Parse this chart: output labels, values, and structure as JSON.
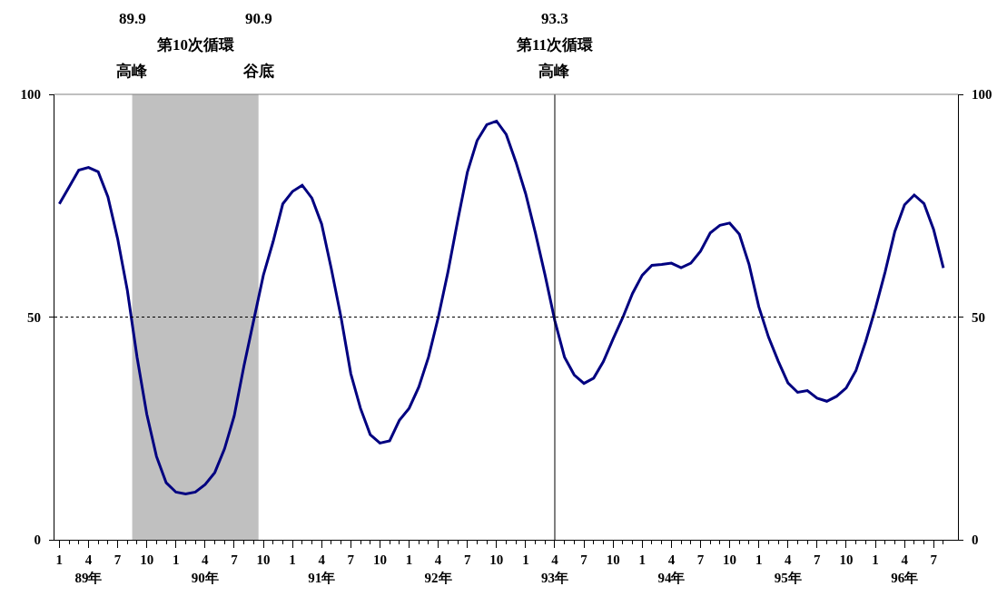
{
  "chart_data": {
    "type": "line",
    "categories": [
      "1",
      null,
      null,
      "4\n89年",
      null,
      null,
      "7",
      null,
      null,
      "10",
      null,
      null,
      "1",
      null,
      null,
      "4\n90年",
      null,
      null,
      "7",
      null,
      null,
      "10",
      null,
      null,
      "1",
      null,
      null,
      "4\n91年",
      null,
      null,
      "7",
      null,
      null,
      "10",
      null,
      null,
      "1",
      null,
      null,
      "4\n92年",
      null,
      null,
      "7",
      null,
      null,
      "10",
      null,
      null,
      "1",
      null,
      null,
      "4\n93年",
      null,
      null,
      "7",
      null,
      null,
      "10",
      null,
      null,
      "1",
      null,
      null,
      "4\n94年",
      null,
      null,
      "7",
      null,
      null,
      "10",
      null,
      null,
      "1",
      null,
      null,
      "4\n95年",
      null,
      null,
      "7",
      null,
      null,
      "10",
      null,
      null,
      "1",
      null,
      null,
      "4\n96年",
      null,
      null,
      "7",
      null
    ],
    "series": [
      {
        "color": "#000080",
        "values": [
          75.4,
          79.2,
          83,
          83.6,
          82.6,
          77,
          67.6,
          56,
          41,
          28.2,
          18.7,
          12.8,
          10.7,
          10.3,
          10.7,
          12.4,
          15.1,
          20.4,
          27.8,
          39,
          49.2,
          59.4,
          66.9,
          75.4,
          78.2,
          79.6,
          76.7,
          70.9,
          60.8,
          49.9,
          37.3,
          29.5,
          23.6,
          21.7,
          22.2,
          26.8,
          29.5,
          34.3,
          41,
          49.9,
          60.1,
          71.6,
          82.5,
          89.6,
          93.2,
          94,
          91,
          84.8,
          77.7,
          68.9,
          59.4,
          49.2,
          41,
          37,
          35.1,
          36.3,
          40,
          45.1,
          49.9,
          55.3,
          59.4,
          61.6,
          61.8,
          62.1,
          61.1,
          62.1,
          64.8,
          68.9,
          70.6,
          71.1,
          68.6,
          61.8,
          52.3,
          45.5,
          40.1,
          35.2,
          33.1,
          33.5,
          31.8,
          31.1,
          32.2,
          34.1,
          38,
          44.5,
          51.9,
          60.1,
          69.2,
          75.2,
          77.4,
          75.5,
          69.6,
          61
        ]
      }
    ],
    "ylim": [
      0,
      100
    ],
    "yticks": [
      0,
      50,
      100
    ],
    "y2lim": [
      0,
      100
    ],
    "y2ticks": [
      0,
      50,
      100
    ],
    "ref_lines": [
      {
        "axis": "y",
        "value": 50,
        "color": "#000000",
        "line_style": "dotted"
      },
      {
        "axis": "x",
        "value": "4\n93年",
        "color": "#000000",
        "line_style": "solid"
      }
    ],
    "annotations": [
      "89.9",
      "90.9",
      "第10次循環",
      "高峰",
      "谷底",
      "93.3",
      "第11次循環",
      "高峰"
    ],
    "grid": false,
    "marker": "none",
    "line_style": "solid"
  }
}
